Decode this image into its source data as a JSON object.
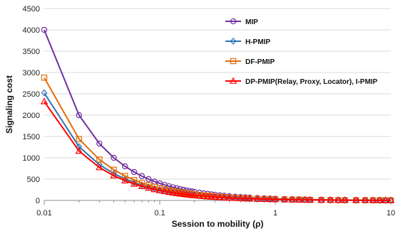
{
  "chart_data": {
    "type": "line",
    "title": "",
    "xlabel": "Session to mobility (ρ)",
    "ylabel": "Signaling cost",
    "x_scale": "log",
    "xlim": [
      0.01,
      10
    ],
    "ylim": [
      0,
      4500
    ],
    "x_ticks": [
      "0.01",
      "0.1",
      "1",
      "10"
    ],
    "y_ticks": [
      "0",
      "500",
      "1000",
      "1500",
      "2000",
      "2500",
      "3000",
      "3500",
      "4000",
      "4500"
    ],
    "grid": "horizontal",
    "legend_position": "top-right",
    "x": [
      0.01,
      0.02,
      0.03,
      0.04,
      0.05,
      0.06,
      0.07,
      0.08,
      0.09,
      0.1,
      0.11,
      0.12,
      0.13,
      0.14,
      0.15,
      0.16,
      0.17,
      0.18,
      0.19,
      0.2,
      0.22,
      0.24,
      0.26,
      0.28,
      0.3,
      0.33,
      0.36,
      0.4,
      0.45,
      0.5,
      0.55,
      0.6,
      0.7,
      0.8,
      0.9,
      1,
      1.2,
      1.4,
      1.6,
      1.8,
      2,
      2.5,
      3,
      3.5,
      4,
      5,
      6,
      7,
      8,
      9,
      10
    ],
    "series": [
      {
        "name": "MIP",
        "color": "#7030a0",
        "marker": "circle",
        "values": [
          4000,
          2000,
          1333,
          1000,
          800,
          667,
          571,
          500,
          444,
          400,
          364,
          333,
          308,
          286,
          267,
          250,
          235,
          222,
          211,
          200,
          182,
          167,
          154,
          143,
          133,
          121,
          111,
          100,
          89,
          80,
          73,
          67,
          57,
          50,
          44,
          40,
          33,
          29,
          25,
          22,
          20,
          16,
          13,
          11,
          10,
          8,
          7,
          6,
          5,
          4,
          4
        ]
      },
      {
        "name": "H-PMIP",
        "color": "#2e75b6",
        "marker": "diamond",
        "values": [
          2520,
          1260,
          840,
          630,
          504,
          420,
          360,
          315,
          280,
          252,
          229,
          210,
          194,
          180,
          168,
          158,
          148,
          140,
          133,
          126,
          115,
          105,
          97,
          90,
          84,
          76,
          70,
          63,
          56,
          50,
          46,
          42,
          36,
          32,
          28,
          25,
          21,
          18,
          16,
          14,
          13,
          10,
          8,
          7,
          6,
          5,
          4,
          4,
          3,
          3,
          3
        ]
      },
      {
        "name": "DF-PMIP",
        "color": "#e36c09",
        "marker": "square",
        "values": [
          2880,
          1440,
          960,
          720,
          576,
          480,
          411,
          360,
          320,
          288,
          262,
          240,
          222,
          206,
          192,
          180,
          169,
          160,
          152,
          144,
          131,
          120,
          111,
          103,
          96,
          87,
          80,
          72,
          64,
          58,
          52,
          48,
          41,
          36,
          32,
          29,
          24,
          21,
          18,
          16,
          14,
          12,
          10,
          8,
          7,
          6,
          5,
          4,
          4,
          3,
          3
        ]
      },
      {
        "name": "DP-PMIP(Relay, Proxy, Locator), I-PMIP",
        "color": "#ff0000",
        "marker": "triangle",
        "values": [
          2320,
          1160,
          773,
          580,
          464,
          387,
          331,
          290,
          258,
          232,
          211,
          193,
          178,
          166,
          155,
          145,
          136,
          129,
          122,
          116,
          105,
          97,
          89,
          83,
          77,
          70,
          64,
          58,
          52,
          46,
          42,
          39,
          33,
          29,
          26,
          23,
          19,
          17,
          15,
          13,
          12,
          9,
          8,
          7,
          6,
          5,
          4,
          3,
          3,
          3,
          2
        ]
      }
    ]
  }
}
